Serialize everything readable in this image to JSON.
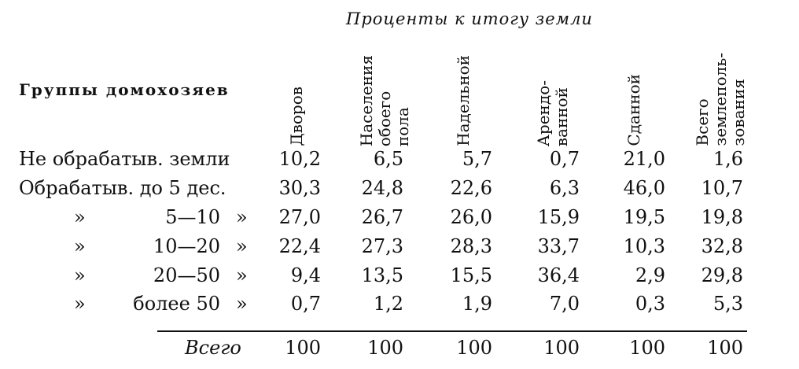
{
  "super_header": "Проценты к итогу земли",
  "group_header": "Группы домохозяев",
  "columns": [
    [
      "Дворов"
    ],
    [
      "Населения",
      "обоего",
      "пола"
    ],
    [
      "Надельной"
    ],
    [
      "Арендо-",
      "ванной"
    ],
    [
      "Сданной"
    ],
    [
      "Всего",
      "землеполь-",
      "зования"
    ]
  ],
  "rows": [
    {
      "label": "Не обрабатыв. земли",
      "values": [
        "10,2",
        "6,5",
        "5,7",
        "0,7",
        "21,0",
        "1,6"
      ]
    },
    {
      "label": "Обрабатыв. до 5 дес.",
      "values": [
        "30,3",
        "24,8",
        "22,6",
        "6,3",
        "46,0",
        "10,7"
      ]
    },
    {
      "quote": "»",
      "range": "5—10",
      "values": [
        "27,0",
        "26,7",
        "26,0",
        "15,9",
        "19,5",
        "19,8"
      ]
    },
    {
      "quote": "»",
      "range": "10—20",
      "values": [
        "22,4",
        "27,3",
        "28,3",
        "33,7",
        "10,3",
        "32,8"
      ]
    },
    {
      "quote": "»",
      "range": "20—50",
      "values": [
        "9,4",
        "13,5",
        "15,5",
        "36,4",
        "2,9",
        "29,8"
      ]
    },
    {
      "quote": "»",
      "range": "более 50",
      "values": [
        "0,7",
        "1,2",
        "1,9",
        "7,0",
        "0,3",
        "5,3"
      ]
    }
  ],
  "total": {
    "label": "Всего",
    "values": [
      "100",
      "100",
      "100",
      "100",
      "100",
      "100"
    ]
  }
}
